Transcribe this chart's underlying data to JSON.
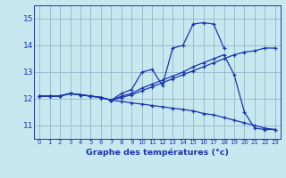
{
  "background_color": "#c8e8f0",
  "grid_color": "#88afc0",
  "line_color": "#1a35b0",
  "xlabel": "Graphe des températures (°c)",
  "hours": [
    0,
    1,
    2,
    3,
    4,
    5,
    6,
    7,
    8,
    9,
    10,
    11,
    12,
    13,
    14,
    15,
    16,
    17,
    18,
    19,
    20,
    21,
    22,
    23
  ],
  "ylim": [
    10.5,
    15.5
  ],
  "yticks": [
    11,
    12,
    13,
    14,
    15
  ],
  "curve_down": [
    12.1,
    12.1,
    12.1,
    12.2,
    12.15,
    12.1,
    12.05,
    11.95,
    11.9,
    11.85,
    11.8,
    11.75,
    11.7,
    11.65,
    11.6,
    11.55,
    11.45,
    11.4,
    11.3,
    11.2,
    11.1,
    11.0,
    10.9,
    10.85
  ],
  "curve_max": [
    12.1,
    12.1,
    12.1,
    12.2,
    12.15,
    12.1,
    12.05,
    11.95,
    12.2,
    12.35,
    13.0,
    13.1,
    12.5,
    13.9,
    14.0,
    14.8,
    14.85,
    14.8,
    13.9,
    null,
    null,
    null,
    null,
    null
  ],
  "curve_mid": [
    12.1,
    12.1,
    12.1,
    12.2,
    12.15,
    12.1,
    12.05,
    11.95,
    12.1,
    12.2,
    12.4,
    12.55,
    12.7,
    12.85,
    13.0,
    13.2,
    13.35,
    13.5,
    13.65,
    12.9,
    11.5,
    10.9,
    10.85,
    10.85
  ],
  "curve_trend": [
    12.1,
    12.1,
    12.1,
    12.2,
    12.15,
    12.1,
    12.05,
    11.95,
    12.05,
    12.15,
    12.3,
    12.45,
    12.6,
    12.75,
    12.9,
    13.05,
    13.2,
    13.35,
    13.5,
    13.65,
    13.75,
    13.8,
    13.9,
    13.9
  ]
}
